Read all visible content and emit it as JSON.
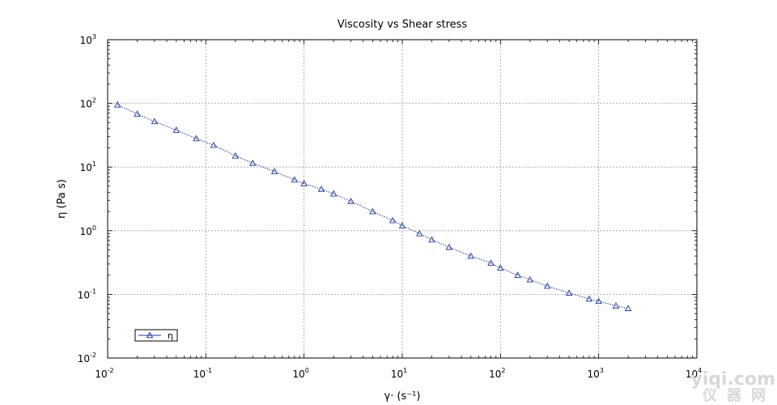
{
  "chart_data": {
    "type": "scatter",
    "title": "Viscosity vs Shear stress",
    "xlabel": "γ· (s⁻¹)",
    "ylabel": "η (Pa s)",
    "x_scale": "log",
    "y_scale": "log",
    "xlim": [
      0.01,
      10000
    ],
    "ylim": [
      0.01,
      1000
    ],
    "x_ticks": [
      {
        "base": "10",
        "exp": "-2"
      },
      {
        "base": "10",
        "exp": "-1"
      },
      {
        "base": "10",
        "exp": "0"
      },
      {
        "base": "10",
        "exp": "1"
      },
      {
        "base": "10",
        "exp": "2"
      },
      {
        "base": "10",
        "exp": "3"
      },
      {
        "base": "10",
        "exp": "4"
      }
    ],
    "y_ticks": [
      {
        "base": "10",
        "exp": "-2"
      },
      {
        "base": "10",
        "exp": "-1"
      },
      {
        "base": "10",
        "exp": "0"
      },
      {
        "base": "10",
        "exp": "1"
      },
      {
        "base": "10",
        "exp": "2"
      },
      {
        "base": "10",
        "exp": "3"
      }
    ],
    "grid": true,
    "legend_position": "bottom-left",
    "series": [
      {
        "name": "η",
        "color": "#1f3a93",
        "marker": "triangle-open",
        "points": [
          {
            "x": 0.0126,
            "y": 95
          },
          {
            "x": 0.02,
            "y": 68
          },
          {
            "x": 0.03,
            "y": 52
          },
          {
            "x": 0.05,
            "y": 38
          },
          {
            "x": 0.08,
            "y": 28
          },
          {
            "x": 0.12,
            "y": 22
          },
          {
            "x": 0.2,
            "y": 15
          },
          {
            "x": 0.3,
            "y": 11.5
          },
          {
            "x": 0.5,
            "y": 8.5
          },
          {
            "x": 0.8,
            "y": 6.3
          },
          {
            "x": 1.0,
            "y": 5.5
          },
          {
            "x": 1.5,
            "y": 4.5
          },
          {
            "x": 2.0,
            "y": 3.8
          },
          {
            "x": 3.0,
            "y": 2.9
          },
          {
            "x": 5.0,
            "y": 2.0
          },
          {
            "x": 8.0,
            "y": 1.45
          },
          {
            "x": 10,
            "y": 1.2
          },
          {
            "x": 15,
            "y": 0.9
          },
          {
            "x": 20,
            "y": 0.72
          },
          {
            "x": 30,
            "y": 0.55
          },
          {
            "x": 50,
            "y": 0.4
          },
          {
            "x": 80,
            "y": 0.31
          },
          {
            "x": 100,
            "y": 0.26
          },
          {
            "x": 150,
            "y": 0.2
          },
          {
            "x": 200,
            "y": 0.17
          },
          {
            "x": 300,
            "y": 0.135
          },
          {
            "x": 500,
            "y": 0.105
          },
          {
            "x": 800,
            "y": 0.085
          },
          {
            "x": 1000,
            "y": 0.078
          },
          {
            "x": 1500,
            "y": 0.066
          },
          {
            "x": 2000,
            "y": 0.06
          }
        ]
      }
    ]
  },
  "watermark": {
    "top": "yiqi.com",
    "bottom": "仪器网"
  }
}
